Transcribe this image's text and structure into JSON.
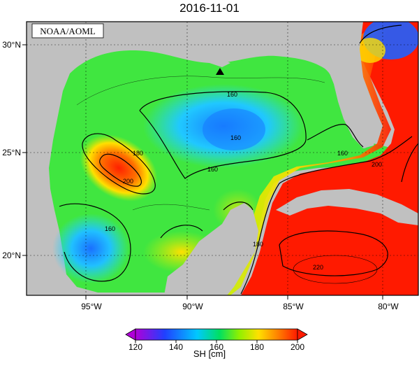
{
  "title": "2016-11-01",
  "source_label": "NOAA/AOML",
  "lat_ticks": [
    {
      "label": "30°N",
      "value": 30
    },
    {
      "label": "25°N",
      "value": 25
    },
    {
      "label": "20°N",
      "value": 20
    }
  ],
  "lon_ticks": [
    {
      "label": "95°W",
      "value": -95
    },
    {
      "label": "90°W",
      "value": -90
    },
    {
      "label": "85°W",
      "value": -85
    },
    {
      "label": "80°W",
      "value": -80
    }
  ],
  "contour_labels": [
    "160",
    "160",
    "180",
    "200",
    "160",
    "160",
    "180",
    "200",
    "220",
    "160"
  ],
  "marker": {
    "symbol": "triangle",
    "lon": -88.5,
    "lat": 28.8
  },
  "colorbar": {
    "ticks": [
      "120",
      "140",
      "160",
      "180",
      "200"
    ],
    "unit_label": "SH [cm]",
    "stops": [
      "#b000d8",
      "#2040ff",
      "#00c8ff",
      "#00e060",
      "#90f000",
      "#ffe000",
      "#ff8000",
      "#ff1a00"
    ]
  },
  "colors": {
    "land": "#c0c0c0",
    "warm": "#ff1a00",
    "mid": "#33e833",
    "cool": "#18b0ff"
  }
}
